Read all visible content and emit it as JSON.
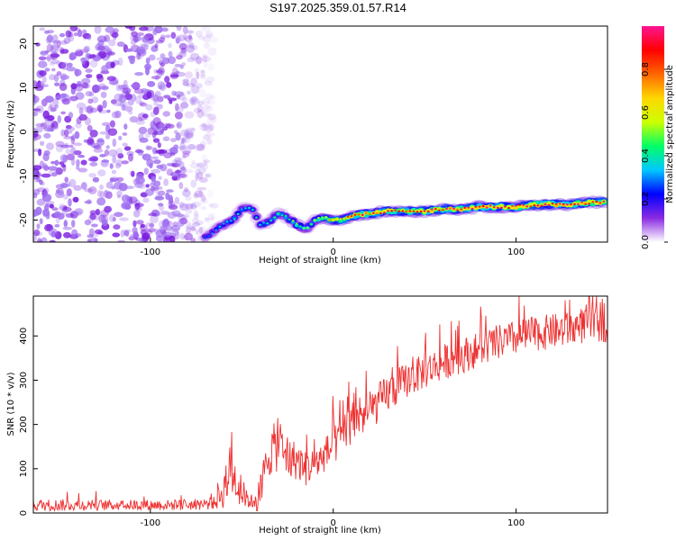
{
  "title": "S197.2025.359.01.57.R14",
  "chart_data": [
    {
      "type": "heatmap",
      "xlabel": "Height of straight line (km)",
      "ylabel": "Frequency (Hz)",
      "xlim": [
        -164,
        150
      ],
      "ylim": [
        -25,
        24
      ],
      "x_ticks": [
        -100,
        0,
        100
      ],
      "y_ticks": [
        -20,
        -10,
        0,
        10,
        20
      ],
      "colorbar": {
        "label": "Normalized spectral amplitude",
        "range": [
          0.0,
          1.0
        ],
        "ticks": [
          "0.0",
          "0.2",
          "0.4",
          "0.6",
          "0.8"
        ],
        "colormap": [
          "#ffffff",
          "#8a2be2",
          "#0000ff",
          "#00c8ff",
          "#00ff66",
          "#ccff00",
          "#ffd700",
          "#ff6600",
          "#ff0000",
          "#ff1493"
        ]
      },
      "ridge": {
        "x": [
          -70,
          -60,
          -55,
          -50,
          -45,
          -40,
          -35,
          -30,
          -25,
          -20,
          -15,
          -10,
          -5,
          0,
          5,
          10,
          20,
          30,
          40,
          50,
          60,
          70,
          80,
          90,
          100,
          110,
          120,
          130,
          140,
          150
        ],
        "y": [
          -24,
          -21,
          -20,
          -17.5,
          -17,
          -21,
          -20.5,
          -18.5,
          -19.5,
          -21,
          -22,
          -20,
          -19.5,
          -20,
          -20,
          -19,
          -18.5,
          -18,
          -18,
          -18,
          -17.5,
          -17.5,
          -17,
          -17,
          -17,
          -16.5,
          -16.5,
          -16.5,
          -16,
          -16
        ],
        "amplitude": [
          0.3,
          0.35,
          0.4,
          0.35,
          0.4,
          0.35,
          0.4,
          0.45,
          0.4,
          0.5,
          0.45,
          0.5,
          0.6,
          0.7,
          0.75,
          0.8,
          0.85,
          0.85,
          0.85,
          0.9,
          0.9,
          0.9,
          0.9,
          0.9,
          0.9,
          0.95,
          0.95,
          0.95,
          0.95,
          0.95
        ]
      },
      "noise_region": {
        "x_range": [
          -164,
          -65
        ],
        "y_range": [
          -25,
          24
        ],
        "amplitude_range": [
          0.1,
          0.3
        ]
      }
    },
    {
      "type": "line",
      "xlabel": "Height of straight line (km)",
      "ylabel": "SNR (10 * v/v)",
      "xlim": [
        -164,
        150
      ],
      "ylim": [
        0,
        490
      ],
      "x_ticks": [
        -100,
        0,
        100
      ],
      "y_ticks": [
        0,
        100,
        200,
        300,
        400
      ],
      "color": "#ee3030",
      "envelope": {
        "x": [
          -164,
          -120,
          -80,
          -65,
          -60,
          -55,
          -50,
          -45,
          -40,
          -35,
          -30,
          -25,
          -20,
          -15,
          -10,
          -5,
          0,
          10,
          20,
          30,
          40,
          50,
          60,
          70,
          80,
          90,
          100,
          110,
          120,
          130,
          140,
          150
        ],
        "y": [
          18,
          18,
          18,
          22,
          50,
          90,
          40,
          25,
          40,
          140,
          150,
          120,
          120,
          100,
          110,
          130,
          150,
          200,
          230,
          270,
          300,
          320,
          340,
          355,
          370,
          385,
          395,
          405,
          410,
          415,
          430,
          435
        ],
        "noise": [
          14,
          12,
          12,
          15,
          40,
          60,
          25,
          15,
          45,
          60,
          55,
          50,
          45,
          40,
          40,
          40,
          45,
          45,
          45,
          45,
          40,
          40,
          40,
          40,
          40,
          40,
          40,
          40,
          40,
          40,
          45,
          50
        ]
      }
    }
  ]
}
